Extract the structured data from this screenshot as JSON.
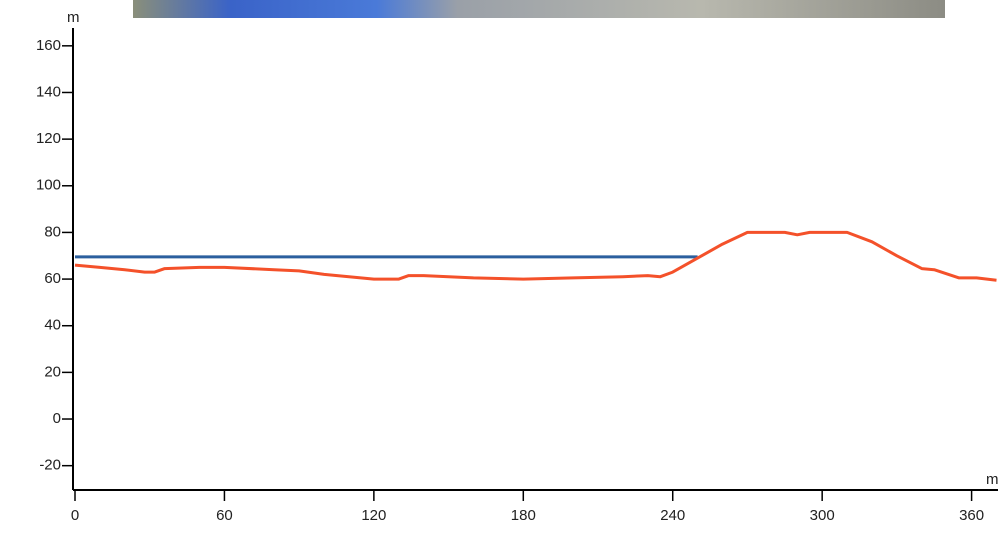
{
  "chart_data": {
    "type": "line",
    "y_label": "m",
    "x_label": "m",
    "xlim": [
      0,
      370
    ],
    "ylim": [
      -30,
      167
    ],
    "xticks": [
      0,
      60,
      120,
      180,
      240,
      300,
      360
    ],
    "yticks": [
      -20,
      0,
      20,
      40,
      60,
      80,
      100,
      120,
      140,
      160
    ],
    "series": [
      {
        "color": "#2b5f9e",
        "x": [
          0,
          250
        ],
        "values": [
          69.5,
          69.5
        ]
      },
      {
        "color": "#f4512a",
        "x": [
          0,
          10,
          20,
          28,
          32,
          36,
          50,
          60,
          80,
          90,
          100,
          110,
          120,
          130,
          134,
          140,
          150,
          160,
          180,
          200,
          220,
          230,
          235,
          240,
          250,
          260,
          270,
          285,
          290,
          295,
          310,
          320,
          330,
          340,
          345,
          355,
          362,
          370
        ],
        "values": [
          66,
          65,
          64,
          63,
          63,
          64.5,
          65,
          65,
          64,
          63.5,
          62,
          61,
          60,
          60,
          61.5,
          61.5,
          61,
          60.5,
          60,
          60.5,
          61,
          61.5,
          61,
          63,
          69,
          75,
          80,
          80,
          79,
          80,
          80,
          76,
          70,
          64.5,
          64,
          60.5,
          60.5,
          59.5
        ]
      }
    ]
  }
}
